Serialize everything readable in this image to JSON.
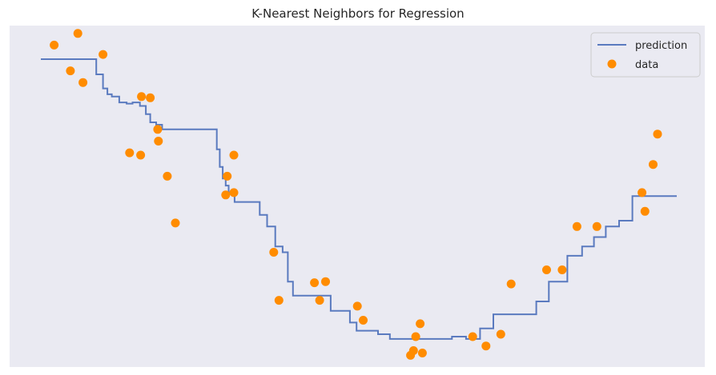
{
  "chart_data": {
    "type": "line",
    "title": "K-Nearest Neighbors for Regression",
    "xlabel": "",
    "ylabel": "",
    "xlim": [
      0,
      8.6
    ],
    "ylim": [
      -1.3,
      1.35
    ],
    "grid": false,
    "legend_position": "top-right",
    "colors": {
      "prediction": "#5a7abf",
      "data": "#ff8c00",
      "background": "#eaeaf2"
    },
    "series": [
      {
        "name": "prediction",
        "kind": "step-line",
        "x": [
          0.0,
          0.66,
          0.75,
          0.84,
          0.9,
          0.96,
          1.06,
          1.16,
          1.24,
          1.34,
          1.42,
          1.48,
          1.56,
          1.64,
          2.38,
          2.42,
          2.46,
          2.5,
          2.54,
          2.62,
          2.74,
          2.96,
          3.06,
          3.17,
          3.27,
          3.34,
          3.41,
          3.54,
          3.68,
          3.8,
          3.92,
          4.1,
          4.18,
          4.27,
          4.4,
          4.56,
          4.72,
          4.84,
          4.94,
          5.01,
          5.07,
          5.15,
          5.3,
          5.42,
          5.56,
          5.75,
          5.94,
          6.02,
          6.12,
          6.24,
          6.46,
          6.7,
          6.87,
          7.12,
          7.32,
          7.48,
          7.64,
          7.82,
          8.0,
          8.6
        ],
        "y": [
          1.2,
          1.2,
          1.07,
          0.95,
          0.9,
          0.88,
          0.83,
          0.82,
          0.83,
          0.8,
          0.73,
          0.66,
          0.64,
          0.6,
          0.43,
          0.28,
          0.18,
          0.12,
          0.05,
          -0.02,
          -0.02,
          -0.13,
          -0.23,
          -0.4,
          -0.45,
          -0.7,
          -0.82,
          -0.82,
          -0.82,
          -0.82,
          -0.95,
          -0.95,
          -1.05,
          -1.12,
          -1.12,
          -1.15,
          -1.19,
          -1.19,
          -1.19,
          -1.19,
          -1.19,
          -1.19,
          -1.19,
          -1.19,
          -1.17,
          -1.19,
          -1.1,
          -1.1,
          -0.98,
          -0.98,
          -0.98,
          -0.87,
          -0.7,
          -0.48,
          -0.4,
          -0.32,
          -0.23,
          -0.18,
          0.03,
          0.03
        ]
      },
      {
        "name": "data",
        "kind": "scatter",
        "x": [
          0.18,
          0.4,
          0.5,
          0.57,
          0.84,
          1.2,
          1.35,
          1.36,
          1.48,
          1.58,
          1.59,
          1.71,
          1.82,
          2.5,
          2.52,
          2.61,
          2.61,
          3.15,
          3.22,
          3.7,
          3.77,
          3.85,
          4.28,
          4.36,
          5.0,
          5.04,
          5.07,
          5.13,
          5.16,
          5.84,
          6.02,
          6.22,
          6.36,
          6.84,
          7.05,
          7.25,
          7.52,
          8.13,
          8.17,
          8.28,
          8.34
        ],
        "y": [
          1.32,
          1.1,
          1.42,
          1.0,
          1.24,
          0.4,
          0.38,
          0.88,
          0.87,
          0.6,
          0.5,
          0.2,
          -0.2,
          0.04,
          0.2,
          0.06,
          0.38,
          -0.45,
          -0.86,
          -0.71,
          -0.86,
          -0.7,
          -0.91,
          -1.03,
          -1.33,
          -1.29,
          -1.17,
          -1.06,
          -1.31,
          -1.17,
          -1.25,
          -1.15,
          -0.72,
          -0.6,
          -0.6,
          -0.23,
          -0.23,
          0.06,
          -0.1,
          0.3,
          0.56
        ]
      }
    ],
    "legend": [
      {
        "label": "prediction",
        "marker": "line"
      },
      {
        "label": "data",
        "marker": "dot"
      }
    ]
  }
}
